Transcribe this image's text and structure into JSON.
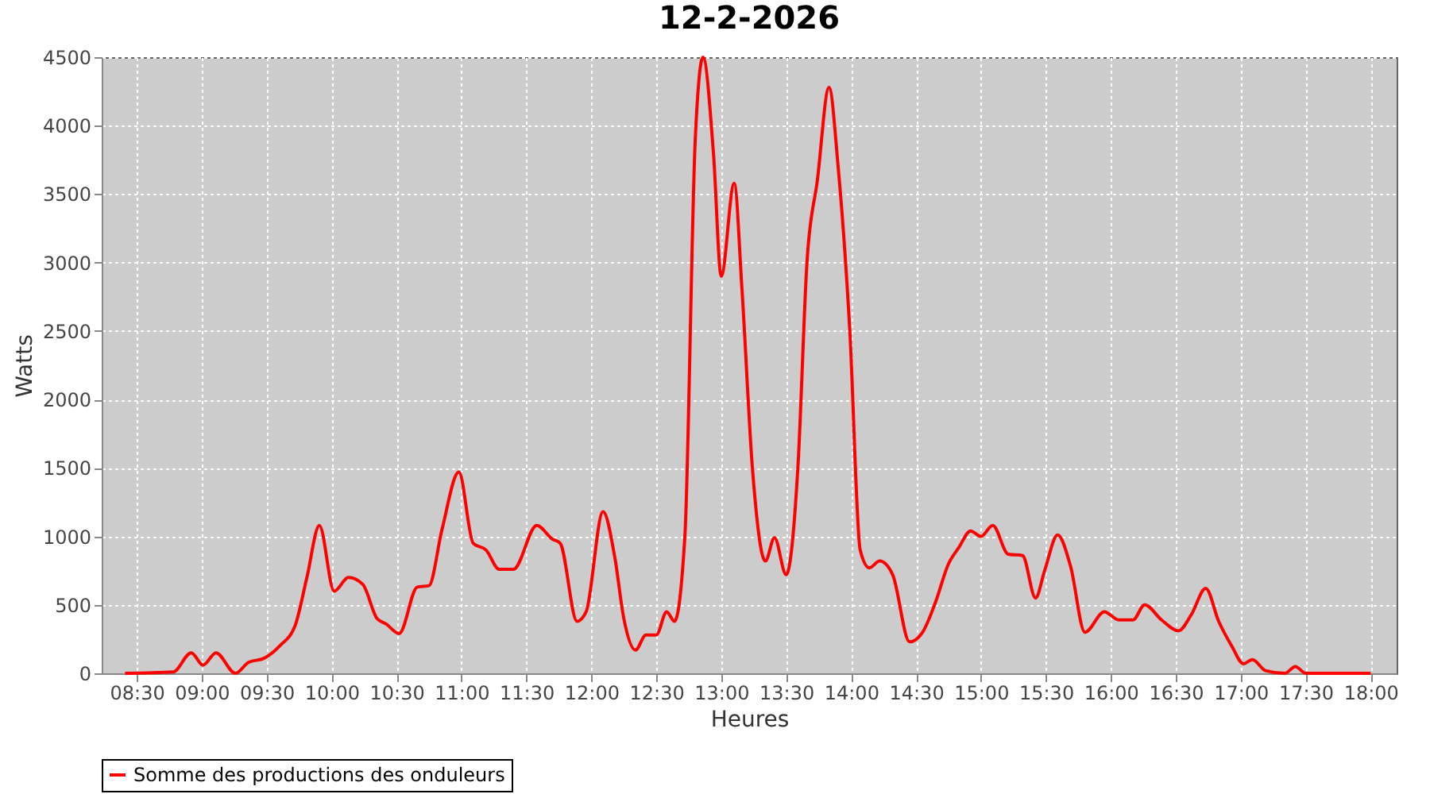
{
  "chart_data": {
    "type": "line",
    "title": "12-2-2026",
    "xlabel": "Heures",
    "ylabel": "Watts",
    "x": [
      8.41,
      8.78,
      8.92,
      9.01,
      9.11,
      9.26,
      9.36,
      9.48,
      9.6,
      9.72,
      9.81,
      9.906,
      10.02,
      10.13,
      10.24,
      10.35,
      10.42,
      10.52,
      10.66,
      10.75,
      10.85,
      10.98,
      11.09,
      11.19,
      11.29,
      11.4,
      11.58,
      11.7,
      11.76,
      11.89,
      11.96,
      12.09,
      12.18,
      12.25,
      12.34,
      12.42,
      12.5,
      12.58,
      12.64,
      12.72,
      12.8,
      12.86,
      12.94,
      13.0,
      13.1,
      13.16,
      13.24,
      13.34,
      13.41,
      13.5,
      13.59,
      13.66,
      13.74,
      13.83,
      13.9,
      13.99,
      14.07,
      14.14,
      14.22,
      14.32,
      14.45,
      14.55,
      14.65,
      14.75,
      14.83,
      14.92,
      15.0,
      15.09,
      15.21,
      15.32,
      15.42,
      15.49,
      15.59,
      15.69,
      15.8,
      15.95,
      16.06,
      16.17,
      16.26,
      16.39,
      16.52,
      16.62,
      16.73,
      16.83,
      16.93,
      17.02,
      17.09,
      17.19,
      17.34,
      17.42,
      17.5,
      18.0
    ],
    "series": [
      {
        "name": "Somme des productions des onduleurs",
        "color": "#ff0000",
        "values": [
          0,
          10,
          150,
          60,
          150,
          0,
          80,
          110,
          200,
          350,
          700,
          1080,
          600,
          700,
          650,
          400,
          360,
          290,
          630,
          640,
          1050,
          1470,
          950,
          900,
          760,
          760,
          1080,
          980,
          950,
          380,
          450,
          1180,
          850,
          400,
          170,
          280,
          280,
          450,
          380,
          1000,
          3900,
          4500,
          3800,
          2900,
          3580,
          2800,
          1500,
          820,
          990,
          720,
          1500,
          3000,
          3600,
          4280,
          3700,
          2500,
          900,
          770,
          820,
          720,
          230,
          300,
          520,
          800,
          920,
          1040,
          1000,
          1080,
          870,
          860,
          550,
          750,
          1010,
          780,
          300,
          450,
          390,
          390,
          500,
          390,
          310,
          430,
          620,
          380,
          200,
          70,
          100,
          20,
          0,
          50,
          0,
          0
        ]
      }
    ],
    "xlim": [
      8.23,
      18.2
    ],
    "xticks": [
      {
        "value": 8.5,
        "label": "08:30"
      },
      {
        "value": 9,
        "label": "09:00"
      },
      {
        "value": 9.5,
        "label": "09:30"
      },
      {
        "value": 10,
        "label": "10:00"
      },
      {
        "value": 10.5,
        "label": "10:30"
      },
      {
        "value": 11,
        "label": "11:00"
      },
      {
        "value": 11.5,
        "label": "11:30"
      },
      {
        "value": 12,
        "label": "12:00"
      },
      {
        "value": 12.5,
        "label": "12:30"
      },
      {
        "value": 13,
        "label": "13:00"
      },
      {
        "value": 13.5,
        "label": "13:30"
      },
      {
        "value": 14,
        "label": "14:00"
      },
      {
        "value": 14.5,
        "label": "14:30"
      },
      {
        "value": 15,
        "label": "15:00"
      },
      {
        "value": 15.5,
        "label": "15:30"
      },
      {
        "value": 16,
        "label": "16:00"
      },
      {
        "value": 16.5,
        "label": "16:30"
      },
      {
        "value": 17,
        "label": "17:00"
      },
      {
        "value": 17.5,
        "label": "17:30"
      },
      {
        "value": 18,
        "label": "18:00"
      }
    ],
    "ylim": [
      0,
      4500
    ],
    "yticks": [
      0,
      500,
      1000,
      1500,
      2000,
      2500,
      3000,
      3500,
      4000,
      4500
    ],
    "grid": true,
    "legend": "bottom",
    "marker": "none",
    "line_style": "solid"
  }
}
